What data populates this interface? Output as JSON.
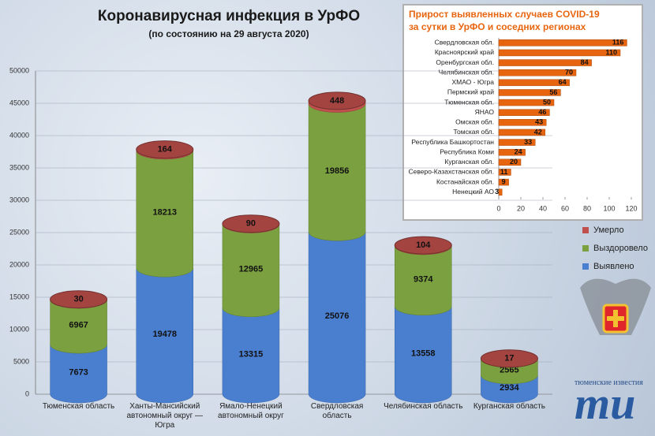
{
  "chart_data": [
    {
      "type": "cylinder-stack",
      "title": "Коронавирусная инфекция в УрФО",
      "subtitle": "(по состоянию на 29 августа 2020)",
      "categories": [
        "Тюменская область",
        "Ханты-Мансийский автономный округ — Югра",
        "Ямало-Ненецкий автономный округ",
        "Свердловская область",
        "Челябинская область",
        "Курганская область"
      ],
      "series": [
        {
          "name": "Выявлено",
          "color": "#4a7fd0",
          "values": [
            7673,
            19478,
            13315,
            25076,
            13558,
            2934
          ]
        },
        {
          "name": "Выздоровело",
          "color": "#7aa040",
          "values": [
            6967,
            18213,
            12965,
            19856,
            9374,
            2565
          ]
        },
        {
          "name": "Умерло",
          "color": "#c0504d",
          "values": [
            30,
            164,
            90,
            448,
            104,
            17
          ]
        }
      ],
      "ylim": [
        0,
        50000
      ],
      "yticks": [
        0,
        5000,
        10000,
        15000,
        20000,
        25000,
        30000,
        35000,
        40000,
        45000,
        50000
      ],
      "stacked": true
    },
    {
      "type": "hbar",
      "title": "Прирост выявленных случаев COVID-19 за сутки в УрФО и соседних регионах",
      "categories": [
        "Свердловская обл.",
        "Красноярский край",
        "Оренбургская обл.",
        "Челябинская обл.",
        "ХМАО - Югра",
        "Пермский край",
        "Тюменская обл.",
        "ЯНАО",
        "Омская обл.",
        "Томская обл.",
        "Республика Башкортостан",
        "Республика Коми",
        "Курганская обл.",
        "Северо-Казахстанская обл.",
        "Костанайская обл.",
        "Ненецкий АО"
      ],
      "values": [
        116,
        110,
        84,
        70,
        64,
        56,
        50,
        46,
        43,
        42,
        33,
        24,
        20,
        11,
        9,
        3
      ],
      "color": "#e8650f",
      "xlim": [
        0,
        120
      ],
      "xticks": [
        0,
        20,
        40,
        60,
        80,
        100,
        120
      ]
    }
  ],
  "logo": {
    "top": "тюменские известия",
    "mark": "ти"
  }
}
